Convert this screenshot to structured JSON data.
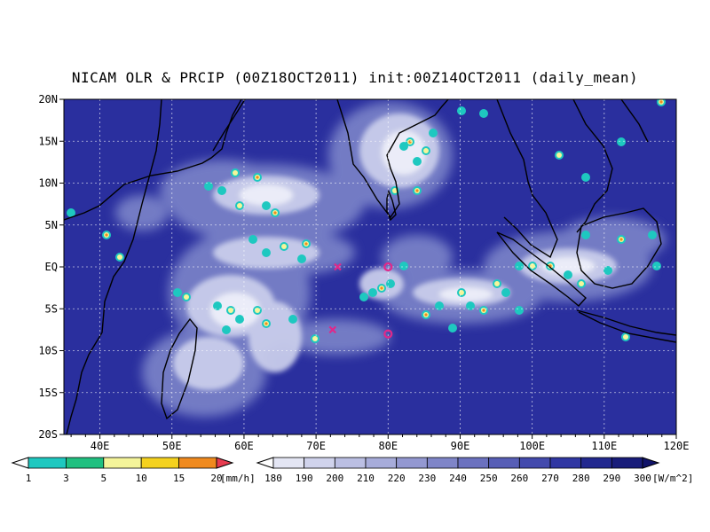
{
  "title": "NICAM OLR & PRCIP (00Z18OCT2011) init:00Z14OCT2011 (daily_mean)",
  "colors": {
    "ocean": "#2a2f9e",
    "ocean_deep": "#1c1f7c",
    "cloud_mid": "#7b84c9",
    "cloud_light": "#c9cdeb",
    "cloud_white": "#f2f3fb",
    "coast": "#000000",
    "marker": "#e0288a"
  },
  "axes": {
    "lon_ticks": [
      "40E",
      "50E",
      "60E",
      "70E",
      "80E",
      "90E",
      "100E",
      "110E",
      "120E"
    ],
    "lat_ticks": [
      "20N",
      "15N",
      "10N",
      "5N",
      "EQ",
      "5S",
      "10S",
      "15S",
      "20S"
    ]
  },
  "precip_scale": {
    "labels": [
      "1",
      "3",
      "5",
      "10",
      "15",
      "20"
    ],
    "unit": "[mm/h]",
    "colors": [
      "#ffffff",
      "#1ec8c0",
      "#20c080",
      "#f5f59a",
      "#f5d21e",
      "#f08a1e",
      "#e83c50"
    ]
  },
  "olr_scale": {
    "labels": [
      "180",
      "190",
      "200",
      "210",
      "220",
      "230",
      "240",
      "250",
      "260",
      "270",
      "280",
      "290",
      "300"
    ],
    "unit": "[W/m^2]",
    "colors": [
      "#ffffff",
      "#e4e6f4",
      "#d0d3ec",
      "#bbbfe3",
      "#a7acda",
      "#9398d1",
      "#7f85c8",
      "#6b71bf",
      "#575eb6",
      "#434aad",
      "#3037a3",
      "#22288f",
      "#181c7a",
      "#10136a"
    ]
  },
  "markers": [
    {
      "type": "x",
      "lon": 73,
      "lat": 0.0
    },
    {
      "type": "x",
      "lon": 72.3,
      "lat": -7.5
    },
    {
      "type": "circle",
      "lon": 80,
      "lat": 0.0
    },
    {
      "type": "circle",
      "lon": 80,
      "lat": -8.0
    }
  ]
}
